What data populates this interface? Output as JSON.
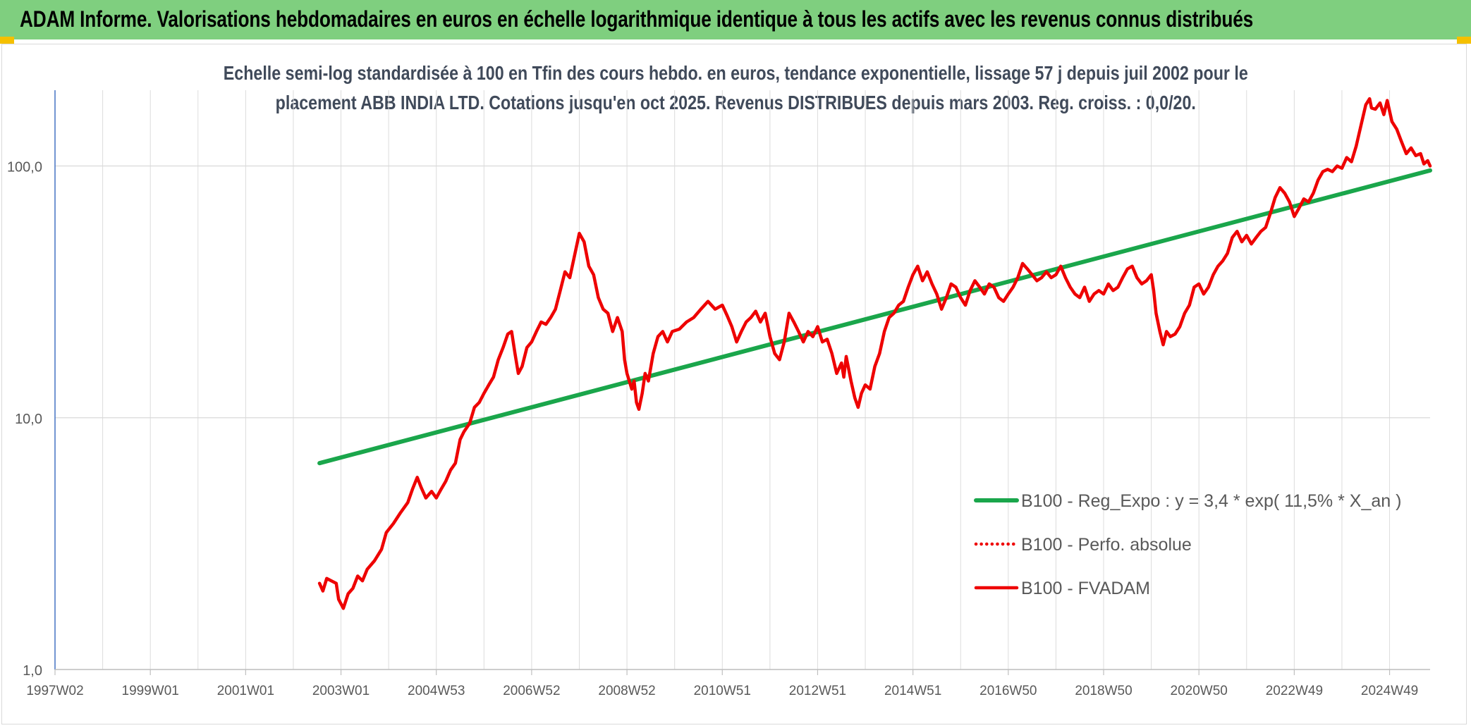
{
  "header": {
    "title": "ADAM Informe. Valorisations hebdomadaires en euros en échelle logarithmique identique à tous les actifs avec les revenus connus distribués"
  },
  "colors": {
    "banner": "#7fcf7f",
    "trend": "#1aa64b",
    "series": "#ee0000",
    "accent": "#f5c000"
  },
  "chart_data": {
    "type": "line",
    "title_line1": "Echelle semi-log standardisée à 100 en Tfin des cours hebdo. en euros, tendance exponentielle, lissage 57 j depuis juil 2002 pour le",
    "title_line2": "placement ABB INDIA LTD. Cotations jusqu'en oct 2025. Revenus DISTRIBUES depuis mars 2003. Reg. croiss. : 0,0/20.",
    "y_scale": "log",
    "ylim": [
      1,
      200
    ],
    "y_ticks": [
      {
        "value": 1,
        "label": "1,0"
      },
      {
        "value": 10,
        "label": "10,0"
      },
      {
        "value": 100,
        "label": "100,0"
      }
    ],
    "xlim": [
      1997.0,
      2025.85
    ],
    "x_ticks": [
      {
        "year": 1997.0,
        "label": "1997W02"
      },
      {
        "year": 1999.0,
        "label": "1999W01"
      },
      {
        "year": 2001.0,
        "label": "2001W01"
      },
      {
        "year": 2003.0,
        "label": "2003W01"
      },
      {
        "year": 2005.0,
        "label": "2004W53"
      },
      {
        "year": 2007.0,
        "label": "2006W52"
      },
      {
        "year": 2009.0,
        "label": "2008W52"
      },
      {
        "year": 2011.0,
        "label": "2010W51"
      },
      {
        "year": 2013.0,
        "label": "2012W51"
      },
      {
        "year": 2015.0,
        "label": "2014W51"
      },
      {
        "year": 2017.0,
        "label": "2016W50"
      },
      {
        "year": 2019.0,
        "label": "2018W50"
      },
      {
        "year": 2021.0,
        "label": "2020W50"
      },
      {
        "year": 2023.0,
        "label": "2022W49"
      },
      {
        "year": 2025.0,
        "label": "2024W49"
      }
    ],
    "gridlines": true,
    "legend_position": "right",
    "series": [
      {
        "name": "B100 - Reg_Expo : y = 3,4 * exp( 11,5% *  X_an )",
        "style": "solid-thick",
        "color": "#1aa64b",
        "points": [
          [
            2002.55,
            6.6
          ],
          [
            2025.85,
            96.0
          ]
        ]
      },
      {
        "name": "B100 - Perfo. absolue",
        "style": "dotted",
        "color": "#ee0000",
        "points": []
      },
      {
        "name": "B100 - FVADAM",
        "style": "solid",
        "color": "#ee0000",
        "points": [
          [
            2002.55,
            2.2
          ],
          [
            2002.62,
            2.05
          ],
          [
            2002.7,
            2.3
          ],
          [
            2002.8,
            2.25
          ],
          [
            2002.9,
            2.2
          ],
          [
            2002.95,
            1.9
          ],
          [
            2003.05,
            1.75
          ],
          [
            2003.15,
            2.0
          ],
          [
            2003.25,
            2.1
          ],
          [
            2003.35,
            2.35
          ],
          [
            2003.45,
            2.25
          ],
          [
            2003.55,
            2.5
          ],
          [
            2003.7,
            2.7
          ],
          [
            2003.85,
            3.0
          ],
          [
            2003.95,
            3.5
          ],
          [
            2004.1,
            3.8
          ],
          [
            2004.25,
            4.2
          ],
          [
            2004.4,
            4.6
          ],
          [
            2004.5,
            5.2
          ],
          [
            2004.6,
            5.8
          ],
          [
            2004.68,
            5.3
          ],
          [
            2004.78,
            4.8
          ],
          [
            2004.9,
            5.1
          ],
          [
            2005.0,
            4.8
          ],
          [
            2005.1,
            5.2
          ],
          [
            2005.2,
            5.6
          ],
          [
            2005.3,
            6.2
          ],
          [
            2005.4,
            6.6
          ],
          [
            2005.5,
            8.2
          ],
          [
            2005.58,
            8.8
          ],
          [
            2005.7,
            9.5
          ],
          [
            2005.8,
            11.0
          ],
          [
            2005.9,
            11.5
          ],
          [
            2006.0,
            12.5
          ],
          [
            2006.1,
            13.5
          ],
          [
            2006.2,
            14.5
          ],
          [
            2006.3,
            17.0
          ],
          [
            2006.4,
            19.0
          ],
          [
            2006.5,
            21.5
          ],
          [
            2006.58,
            22.0
          ],
          [
            2006.65,
            18.0
          ],
          [
            2006.72,
            15.0
          ],
          [
            2006.8,
            16.0
          ],
          [
            2006.9,
            19.0
          ],
          [
            2007.0,
            20.0
          ],
          [
            2007.1,
            22.0
          ],
          [
            2007.2,
            24.0
          ],
          [
            2007.3,
            23.5
          ],
          [
            2007.4,
            25.0
          ],
          [
            2007.5,
            27.0
          ],
          [
            2007.6,
            32.0
          ],
          [
            2007.7,
            38.0
          ],
          [
            2007.8,
            36.0
          ],
          [
            2007.9,
            44.0
          ],
          [
            2008.0,
            54.0
          ],
          [
            2008.1,
            50.0
          ],
          [
            2008.2,
            40.0
          ],
          [
            2008.3,
            37.0
          ],
          [
            2008.4,
            30.0
          ],
          [
            2008.5,
            27.0
          ],
          [
            2008.6,
            26.0
          ],
          [
            2008.7,
            22.0
          ],
          [
            2008.8,
            25.0
          ],
          [
            2008.9,
            22.0
          ],
          [
            2008.95,
            17.0
          ],
          [
            2009.0,
            15.0
          ],
          [
            2009.1,
            13.0
          ],
          [
            2009.15,
            14.0
          ],
          [
            2009.2,
            11.5
          ],
          [
            2009.25,
            10.8
          ],
          [
            2009.32,
            12.5
          ],
          [
            2009.38,
            15.0
          ],
          [
            2009.45,
            14.0
          ],
          [
            2009.55,
            18.0
          ],
          [
            2009.65,
            21.0
          ],
          [
            2009.75,
            22.0
          ],
          [
            2009.85,
            20.0
          ],
          [
            2009.95,
            22.0
          ],
          [
            2010.1,
            22.5
          ],
          [
            2010.25,
            24.0
          ],
          [
            2010.4,
            25.0
          ],
          [
            2010.55,
            27.0
          ],
          [
            2010.7,
            29.0
          ],
          [
            2010.85,
            27.0
          ],
          [
            2011.0,
            28.0
          ],
          [
            2011.1,
            25.5
          ],
          [
            2011.2,
            23.0
          ],
          [
            2011.3,
            20.0
          ],
          [
            2011.4,
            22.0
          ],
          [
            2011.5,
            24.0
          ],
          [
            2011.6,
            25.0
          ],
          [
            2011.7,
            26.5
          ],
          [
            2011.8,
            24.0
          ],
          [
            2011.9,
            26.0
          ],
          [
            2012.0,
            21.0
          ],
          [
            2012.1,
            18.0
          ],
          [
            2012.2,
            17.0
          ],
          [
            2012.3,
            20.0
          ],
          [
            2012.4,
            26.0
          ],
          [
            2012.5,
            24.0
          ],
          [
            2012.6,
            22.0
          ],
          [
            2012.7,
            20.0
          ],
          [
            2012.8,
            22.0
          ],
          [
            2012.9,
            21.0
          ],
          [
            2013.0,
            23.0
          ],
          [
            2013.1,
            20.0
          ],
          [
            2013.2,
            20.5
          ],
          [
            2013.3,
            18.0
          ],
          [
            2013.4,
            15.0
          ],
          [
            2013.5,
            16.5
          ],
          [
            2013.55,
            14.5
          ],
          [
            2013.6,
            17.5
          ],
          [
            2013.7,
            14.0
          ],
          [
            2013.78,
            12.0
          ],
          [
            2013.85,
            11.0
          ],
          [
            2013.92,
            12.5
          ],
          [
            2014.0,
            13.5
          ],
          [
            2014.1,
            13.0
          ],
          [
            2014.2,
            16.0
          ],
          [
            2014.3,
            18.0
          ],
          [
            2014.4,
            22.0
          ],
          [
            2014.5,
            25.0
          ],
          [
            2014.6,
            26.0
          ],
          [
            2014.7,
            28.0
          ],
          [
            2014.8,
            29.0
          ],
          [
            2014.9,
            33.0
          ],
          [
            2015.0,
            37.0
          ],
          [
            2015.1,
            40.0
          ],
          [
            2015.2,
            35.0
          ],
          [
            2015.3,
            38.0
          ],
          [
            2015.4,
            34.0
          ],
          [
            2015.5,
            31.0
          ],
          [
            2015.6,
            27.0
          ],
          [
            2015.7,
            30.0
          ],
          [
            2015.8,
            34.0
          ],
          [
            2015.9,
            33.0
          ],
          [
            2016.0,
            30.0
          ],
          [
            2016.1,
            28.0
          ],
          [
            2016.2,
            32.0
          ],
          [
            2016.3,
            35.0
          ],
          [
            2016.4,
            33.0
          ],
          [
            2016.5,
            31.0
          ],
          [
            2016.6,
            34.0
          ],
          [
            2016.7,
            33.0
          ],
          [
            2016.8,
            30.0
          ],
          [
            2016.9,
            29.0
          ],
          [
            2017.0,
            31.0
          ],
          [
            2017.1,
            33.0
          ],
          [
            2017.2,
            36.0
          ],
          [
            2017.3,
            41.0
          ],
          [
            2017.4,
            39.0
          ],
          [
            2017.5,
            37.0
          ],
          [
            2017.6,
            35.0
          ],
          [
            2017.7,
            36.0
          ],
          [
            2017.8,
            38.0
          ],
          [
            2017.9,
            36.0
          ],
          [
            2018.0,
            37.0
          ],
          [
            2018.1,
            40.0
          ],
          [
            2018.2,
            36.0
          ],
          [
            2018.3,
            33.0
          ],
          [
            2018.4,
            31.0
          ],
          [
            2018.5,
            30.0
          ],
          [
            2018.6,
            33.0
          ],
          [
            2018.7,
            29.0
          ],
          [
            2018.8,
            31.0
          ],
          [
            2018.9,
            32.0
          ],
          [
            2019.0,
            31.0
          ],
          [
            2019.1,
            34.0
          ],
          [
            2019.2,
            32.0
          ],
          [
            2019.3,
            33.0
          ],
          [
            2019.4,
            36.0
          ],
          [
            2019.5,
            39.0
          ],
          [
            2019.6,
            40.0
          ],
          [
            2019.7,
            36.0
          ],
          [
            2019.8,
            34.0
          ],
          [
            2019.9,
            35.0
          ],
          [
            2020.0,
            37.0
          ],
          [
            2020.05,
            32.0
          ],
          [
            2020.1,
            26.0
          ],
          [
            2020.18,
            22.0
          ],
          [
            2020.25,
            19.5
          ],
          [
            2020.32,
            22.0
          ],
          [
            2020.4,
            21.0
          ],
          [
            2020.5,
            21.5
          ],
          [
            2020.6,
            23.0
          ],
          [
            2020.7,
            26.0
          ],
          [
            2020.8,
            28.0
          ],
          [
            2020.9,
            33.0
          ],
          [
            2021.0,
            34.0
          ],
          [
            2021.1,
            31.0
          ],
          [
            2021.2,
            33.0
          ],
          [
            2021.3,
            37.0
          ],
          [
            2021.4,
            40.0
          ],
          [
            2021.5,
            42.0
          ],
          [
            2021.6,
            45.0
          ],
          [
            2021.7,
            52.0
          ],
          [
            2021.8,
            55.0
          ],
          [
            2021.9,
            50.0
          ],
          [
            2022.0,
            53.0
          ],
          [
            2022.1,
            49.0
          ],
          [
            2022.2,
            52.0
          ],
          [
            2022.3,
            55.0
          ],
          [
            2022.4,
            57.0
          ],
          [
            2022.5,
            65.0
          ],
          [
            2022.6,
            75.0
          ],
          [
            2022.7,
            82.0
          ],
          [
            2022.8,
            78.0
          ],
          [
            2022.9,
            72.0
          ],
          [
            2023.0,
            63.0
          ],
          [
            2023.1,
            68.0
          ],
          [
            2023.2,
            74.0
          ],
          [
            2023.3,
            72.0
          ],
          [
            2023.4,
            78.0
          ],
          [
            2023.5,
            88.0
          ],
          [
            2023.6,
            95.0
          ],
          [
            2023.7,
            97.0
          ],
          [
            2023.8,
            95.0
          ],
          [
            2023.9,
            100.0
          ],
          [
            2024.0,
            98.0
          ],
          [
            2024.1,
            108.0
          ],
          [
            2024.2,
            104.0
          ],
          [
            2024.3,
            120.0
          ],
          [
            2024.4,
            145.0
          ],
          [
            2024.5,
            175.0
          ],
          [
            2024.58,
            185.0
          ],
          [
            2024.62,
            170.0
          ],
          [
            2024.7,
            168.0
          ],
          [
            2024.8,
            178.0
          ],
          [
            2024.88,
            160.0
          ],
          [
            2024.95,
            182.0
          ],
          [
            2025.05,
            150.0
          ],
          [
            2025.15,
            140.0
          ],
          [
            2025.25,
            125.0
          ],
          [
            2025.35,
            112.0
          ],
          [
            2025.45,
            118.0
          ],
          [
            2025.55,
            110.0
          ],
          [
            2025.65,
            112.0
          ],
          [
            2025.72,
            102.0
          ],
          [
            2025.8,
            105.0
          ],
          [
            2025.85,
            100.0
          ]
        ]
      }
    ]
  }
}
